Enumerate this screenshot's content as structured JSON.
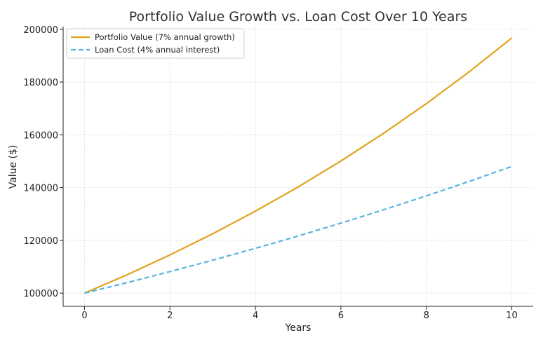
{
  "chart_data": {
    "type": "line",
    "title": "Portfolio Value Growth vs. Loan Cost Over 10 Years",
    "xlabel": "Years",
    "ylabel": "Value ($)",
    "xlim": [
      -0.5,
      10.5
    ],
    "ylim": [
      95000,
      201000
    ],
    "xticks": [
      0,
      2,
      4,
      6,
      8,
      10
    ],
    "yticks": [
      100000,
      120000,
      140000,
      160000,
      180000,
      200000
    ],
    "xtick_labels": [
      "0",
      "2",
      "4",
      "6",
      "8",
      "10"
    ],
    "ytick_labels": [
      "100000",
      "120000",
      "140000",
      "160000",
      "180000",
      "200000"
    ],
    "grid": true,
    "legend_position": "upper-left",
    "x": [
      0,
      1,
      2,
      3,
      4,
      5,
      6,
      7,
      8,
      9,
      10
    ],
    "series": [
      {
        "name": "Portfolio Value (7% annual growth)",
        "color": "#e0a31a",
        "style": "solid",
        "values": [
          100000,
          107000,
          114490,
          122504,
          131080,
          140255,
          150073,
          160578,
          171819,
          183846,
          196715
        ]
      },
      {
        "name": "Loan Cost (4% annual interest)",
        "color": "#5ab3e0",
        "style": "dashed",
        "values": [
          100000,
          104000,
          108160,
          112486,
          116986,
          121665,
          126532,
          131593,
          136857,
          142331,
          148024
        ]
      }
    ]
  }
}
